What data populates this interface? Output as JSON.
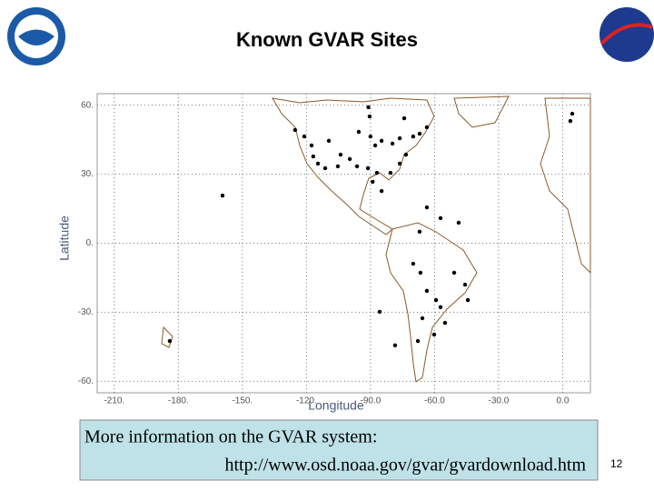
{
  "chart_data": {
    "type": "scatter",
    "title": "Known GVAR Sites",
    "x_label": "Longitude",
    "y_label": "Latitude",
    "xlim": [
      -218,
      13
    ],
    "ylim": [
      -65,
      65
    ],
    "xticks": [
      {
        "value": -210,
        "label": "-210."
      },
      {
        "value": -180,
        "label": "-180."
      },
      {
        "value": -150,
        "label": "-150."
      },
      {
        "value": -120,
        "label": "-120."
      },
      {
        "value": -90,
        "label": "-90.0"
      },
      {
        "value": -60,
        "label": "-60.0"
      },
      {
        "value": -30,
        "label": "-30.0"
      },
      {
        "value": 0,
        "label": "0.0"
      }
    ],
    "yticks": [
      {
        "value": 60,
        "label": "60."
      },
      {
        "value": 30,
        "label": "30."
      },
      {
        "value": 0,
        "label": "0."
      },
      {
        "value": -30,
        "label": "-30."
      },
      {
        "value": -60,
        "label": "-60."
      }
    ],
    "grid": true,
    "color": "#000000",
    "x": [
      -91,
      -90.4,
      -95.5,
      -90,
      -87.8,
      -84.8,
      -79.7,
      -76.3,
      -70,
      -67,
      -63.6,
      -74.2,
      -121,
      -117.6,
      -109.5,
      -104,
      -99.7,
      -114.6,
      -111.2,
      -116.8,
      -105.3,
      -96.3,
      -91.2,
      -87,
      -80.6,
      -76.3,
      -73.4,
      -89,
      -84.8,
      -159.3,
      -63.6,
      -57.2,
      -48.7,
      -67,
      -70,
      -66.6,
      -63.6,
      -59.3,
      -57.2,
      -50.8,
      -44.4,
      -45.7,
      -65.7,
      -60.2,
      -55.1,
      -67.8,
      -184,
      -85.7,
      -78.5,
      3.6,
      4.5,
      -125.3
    ],
    "values": [
      59.1,
      55.1,
      48.4,
      46.4,
      42.5,
      44.5,
      43.3,
      45.6,
      46.4,
      47.6,
      50.4,
      54.3,
      46.4,
      42.5,
      44.5,
      38.5,
      36.6,
      34.6,
      32.6,
      37.7,
      33.4,
      33.4,
      32.6,
      30.6,
      30.6,
      34.6,
      38.5,
      26.7,
      22.7,
      20.7,
      15.6,
      10.9,
      8.9,
      5,
      -8.9,
      -12.8,
      -20.7,
      -24.7,
      -27.8,
      -12.8,
      -24.7,
      -18,
      -32.6,
      -39.7,
      -34.6,
      -42.5,
      -42.5,
      -29.8,
      -44.4,
      53.1,
      56.3,
      49.2
    ]
  },
  "info_box": {
    "line1": "More information on the GVAR system:",
    "line2": "http://www.osd.noaa.gov/gvar/gvardownload.htm"
  },
  "page_number": "12"
}
